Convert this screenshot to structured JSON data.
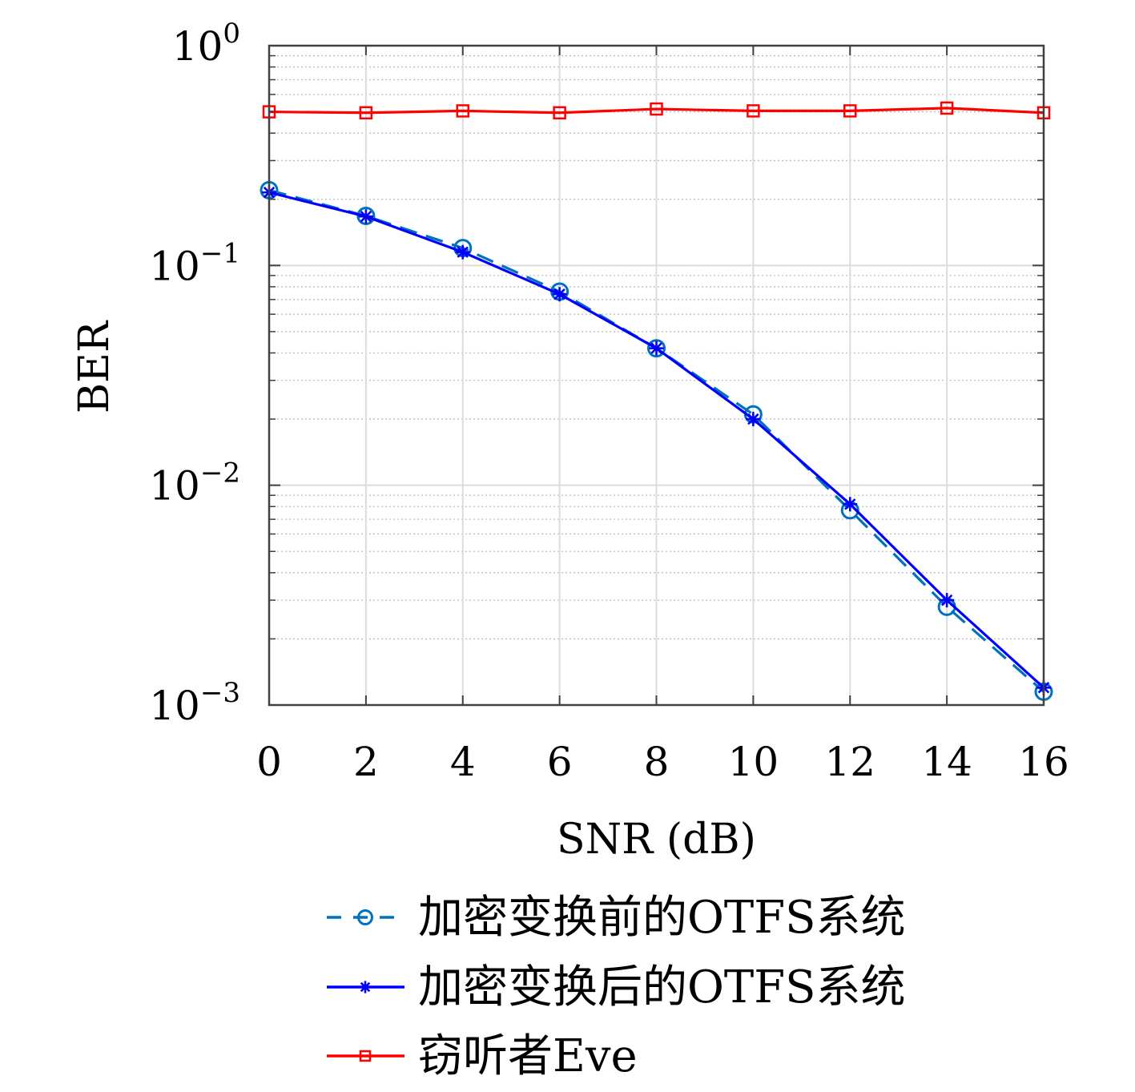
{
  "chart_data": {
    "type": "line",
    "xlabel": "SNR (dB)",
    "ylabel": "BER",
    "xlim": [
      0,
      16
    ],
    "ylim": [
      0.001,
      1
    ],
    "yscale": "log",
    "grid": true,
    "minor_grid": true,
    "legend_position": "bottom",
    "x_ticks": [
      "0",
      "2",
      "4",
      "6",
      "8",
      "10",
      "12",
      "14",
      "16"
    ],
    "y_ticks": [
      {
        "base": "10",
        "exp": "0"
      },
      {
        "base": "10",
        "exp": "−1"
      },
      {
        "base": "10",
        "exp": "−2"
      },
      {
        "base": "10",
        "exp": "−3"
      }
    ],
    "x": [
      0,
      2,
      4,
      6,
      8,
      10,
      12,
      14,
      16
    ],
    "series": [
      {
        "name": "加密变换前的OTFS系统",
        "color": "#0072bd",
        "line_style": "dashed",
        "marker": "circle",
        "values": [
          0.22,
          0.168,
          0.12,
          0.076,
          0.042,
          0.021,
          0.0077,
          0.0028,
          0.00115
        ]
      },
      {
        "name": "加密变换后的OTFS系统",
        "color": "#0000ff",
        "line_style": "solid",
        "marker": "asterisk",
        "values": [
          0.215,
          0.167,
          0.115,
          0.074,
          0.042,
          0.02,
          0.0082,
          0.003,
          0.0012
        ]
      },
      {
        "name": "窃听者Eve",
        "color": "#ff0000",
        "line_style": "solid",
        "marker": "square",
        "values": [
          0.5,
          0.495,
          0.505,
          0.495,
          0.515,
          0.505,
          0.505,
          0.52,
          0.495
        ]
      }
    ]
  }
}
